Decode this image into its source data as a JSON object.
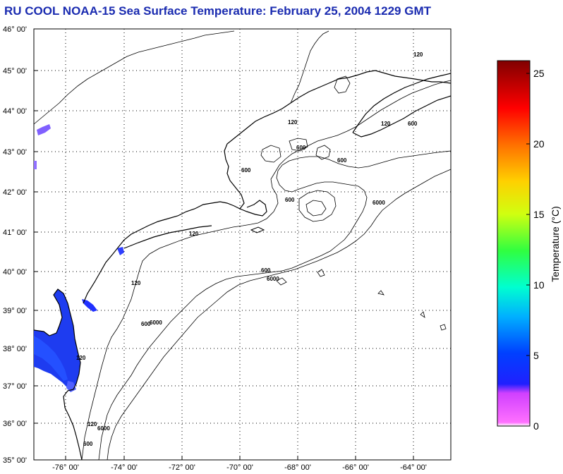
{
  "title": "RU COOL  NOAA-15  Sea Surface Temperature:  February 25, 2004 1229 GMT",
  "map": {
    "lat_labels": [
      "46° 00'",
      "45° 00'",
      "44° 00'",
      "43° 00'",
      "42° 00'",
      "41° 00'",
      "40° 00'",
      "39° 00'",
      "38° 00'",
      "37° 00'",
      "36° 00'",
      "35° 00'"
    ],
    "lon_labels": [
      "-76° 00'",
      "-74° 00'",
      "-72° 00'",
      "-70° 00'",
      "-68° 00'",
      "-66° 00'",
      "-64° 00'"
    ],
    "contour_labels": {
      "c120_a": "120",
      "c120_b": "120",
      "c120_c": "120",
      "c120_d": "120",
      "c120_e": "120",
      "c120_f": "120",
      "c120_g": "120",
      "c600_a": "600",
      "c600_b": "600",
      "c600_c": "600",
      "c600_d": "600",
      "c600_e": "600",
      "c600_f": "600",
      "c600_g": "600",
      "c600_h": "600",
      "c6000_a": "6000",
      "c6000_b": "6000",
      "c6000_c": "6000",
      "c6000_d": "6000"
    }
  },
  "colorbar": {
    "title": "Temperature (°C)",
    "ticks": [
      "25",
      "20",
      "15",
      "10",
      "5",
      "0"
    ],
    "colors": [
      "#ff80ff",
      "#ff40e0",
      "#b020ff",
      "#3030ff",
      "#0040ff",
      "#00a0ff",
      "#00e0ff",
      "#00ffc0",
      "#40ff60",
      "#b0ff20",
      "#ffff00",
      "#ffb000",
      "#ff6000",
      "#ff0000",
      "#c00000",
      "#800000"
    ]
  }
}
